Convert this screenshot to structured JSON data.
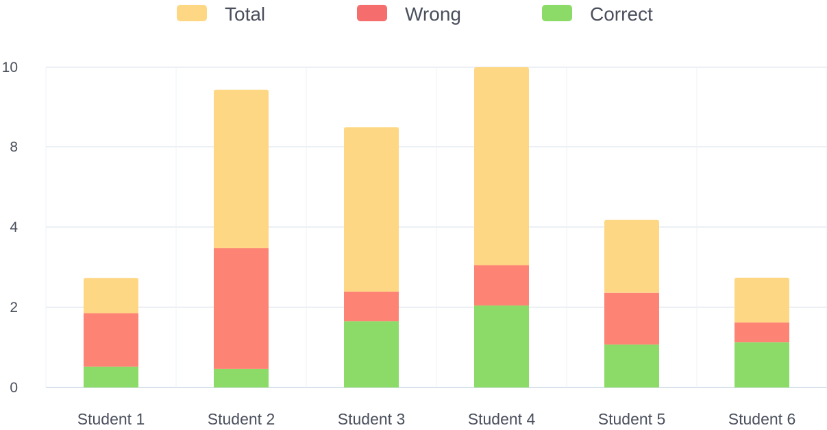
{
  "chart_data": {
    "type": "bar",
    "stacked": true,
    "categories": [
      "Student 1",
      "Student 2",
      "Student 3",
      "Student 4",
      "Student 5",
      "Student 6"
    ],
    "series": [
      {
        "name": "Correct",
        "color": "#8cdb69",
        "values": [
          0.65,
          0.58,
          2.07,
          2.56,
          1.34,
          1.41
        ]
      },
      {
        "name": "Wrong",
        "color": "#fd8474",
        "values": [
          1.67,
          3.77,
          0.92,
          1.26,
          1.62,
          0.62
        ]
      },
      {
        "name": "Total",
        "color": "#fed785",
        "values": [
          1.1,
          4.95,
          5.14,
          6.18,
          2.27,
          1.4
        ]
      }
    ],
    "legend": {
      "position": "top-center",
      "items": [
        {
          "name": "Total",
          "color": "#fed785"
        },
        {
          "name": "Wrong",
          "color": "#f56d6d"
        },
        {
          "name": "Correct",
          "color": "#8cdb69"
        }
      ]
    },
    "y_tick_labels": [
      "0",
      "2",
      "4",
      "8",
      "10"
    ],
    "ylim": [
      0,
      10
    ],
    "grid": true,
    "title": "",
    "xlabel": "",
    "ylabel": ""
  }
}
